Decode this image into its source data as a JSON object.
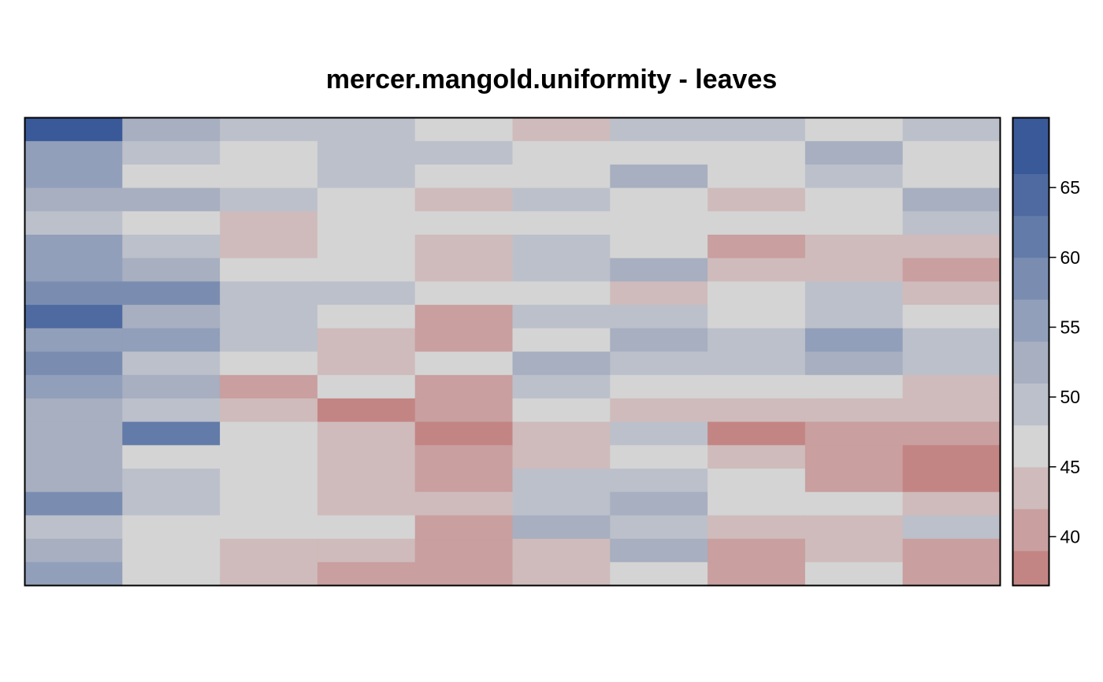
{
  "chart_data": {
    "type": "heatmap",
    "title": "mercer.mangold.uniformity - leaves",
    "xlabel": "",
    "ylabel": "",
    "n_cols": 10,
    "n_rows": 20,
    "grid": false,
    "legend_position": "right",
    "colorbar": {
      "range": [
        36.5,
        70
      ],
      "ticks": [
        40,
        45,
        50,
        55,
        60,
        65
      ],
      "tick_labels": [
        "40",
        "45",
        "50",
        "55",
        "60",
        "65"
      ],
      "bins": [
        {
          "max": 39,
          "color": "#c38584"
        },
        {
          "max": 42,
          "color": "#c99f9f"
        },
        {
          "max": 45,
          "color": "#cfbbbb"
        },
        {
          "max": 48,
          "color": "#d4d4d4"
        },
        {
          "max": 51,
          "color": "#bcc0ca"
        },
        {
          "max": 54,
          "color": "#a7afc0"
        },
        {
          "max": 57,
          "color": "#919fba"
        },
        {
          "max": 60,
          "color": "#7a8db1"
        },
        {
          "max": 63,
          "color": "#637ba8"
        },
        {
          "max": 66,
          "color": "#4f6aa0"
        },
        {
          "max": 70,
          "color": "#3a5998"
        }
      ]
    },
    "values": [
      [
        68,
        53,
        50,
        50,
        46,
        44,
        50,
        50,
        47,
        50
      ],
      [
        56,
        50,
        47,
        50,
        50,
        47,
        47,
        47,
        53,
        47
      ],
      [
        56,
        47,
        47,
        50,
        47,
        47,
        53,
        47,
        50,
        47
      ],
      [
        53,
        53,
        50,
        47,
        44,
        50,
        47,
        44,
        47,
        53
      ],
      [
        50,
        47,
        44,
        47,
        47,
        47,
        47,
        47,
        47,
        50
      ],
      [
        56,
        50,
        44,
        47,
        44,
        50,
        47,
        41,
        44,
        44
      ],
      [
        56,
        53,
        47,
        47,
        44,
        50,
        53,
        44,
        44,
        41
      ],
      [
        59,
        59,
        50,
        50,
        47,
        47,
        44,
        47,
        50,
        44
      ],
      [
        65,
        53,
        50,
        47,
        41,
        50,
        50,
        47,
        50,
        47
      ],
      [
        56,
        56,
        50,
        44,
        41,
        47,
        53,
        50,
        56,
        50
      ],
      [
        59,
        50,
        47,
        44,
        47,
        53,
        50,
        50,
        53,
        50
      ],
      [
        56,
        53,
        41,
        47,
        41,
        50,
        47,
        47,
        47,
        44
      ],
      [
        53,
        50,
        44,
        38,
        41,
        47,
        44,
        44,
        44,
        44
      ],
      [
        53,
        62,
        47,
        44,
        38,
        44,
        50,
        38,
        41,
        41
      ],
      [
        53,
        47,
        47,
        44,
        41,
        44,
        47,
        44,
        41,
        38
      ],
      [
        53,
        50,
        47,
        44,
        41,
        50,
        50,
        47,
        41,
        38
      ],
      [
        59,
        50,
        47,
        44,
        44,
        50,
        53,
        47,
        47,
        44
      ],
      [
        50,
        47,
        47,
        47,
        41,
        53,
        50,
        44,
        44,
        50
      ],
      [
        53,
        47,
        44,
        44,
        41,
        44,
        53,
        41,
        44,
        41
      ],
      [
        56,
        47,
        44,
        41,
        41,
        44,
        47,
        41,
        47,
        41
      ]
    ]
  }
}
